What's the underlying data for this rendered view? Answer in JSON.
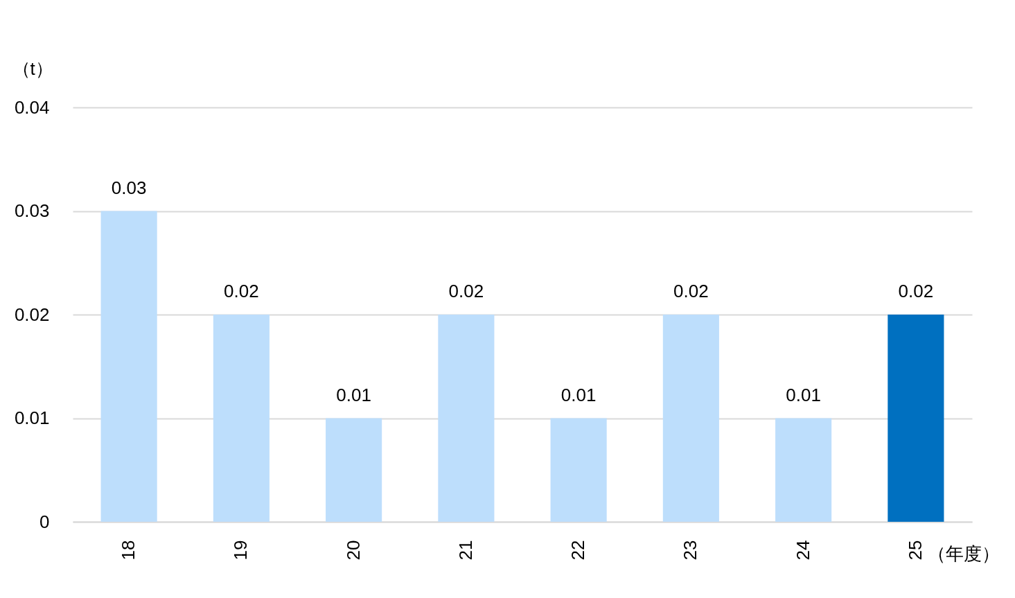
{
  "chart_data": {
    "type": "bar",
    "xlabel": "（年度）",
    "ylabel": "（t）",
    "categories": [
      "18",
      "19",
      "20",
      "21",
      "22",
      "23",
      "24",
      "25"
    ],
    "values": [
      0.03,
      0.02,
      0.01,
      0.02,
      0.01,
      0.02,
      0.01,
      0.02
    ],
    "colors": [
      "#bddefc",
      "#bddefc",
      "#bddefc",
      "#bddefc",
      "#bddefc",
      "#bddefc",
      "#bddefc",
      "#0070c0"
    ],
    "ylim": [
      0,
      0.04
    ],
    "yticks": [
      0,
      0.01,
      0.02,
      0.03,
      0.04
    ],
    "grid": "y",
    "data_labels": true
  }
}
